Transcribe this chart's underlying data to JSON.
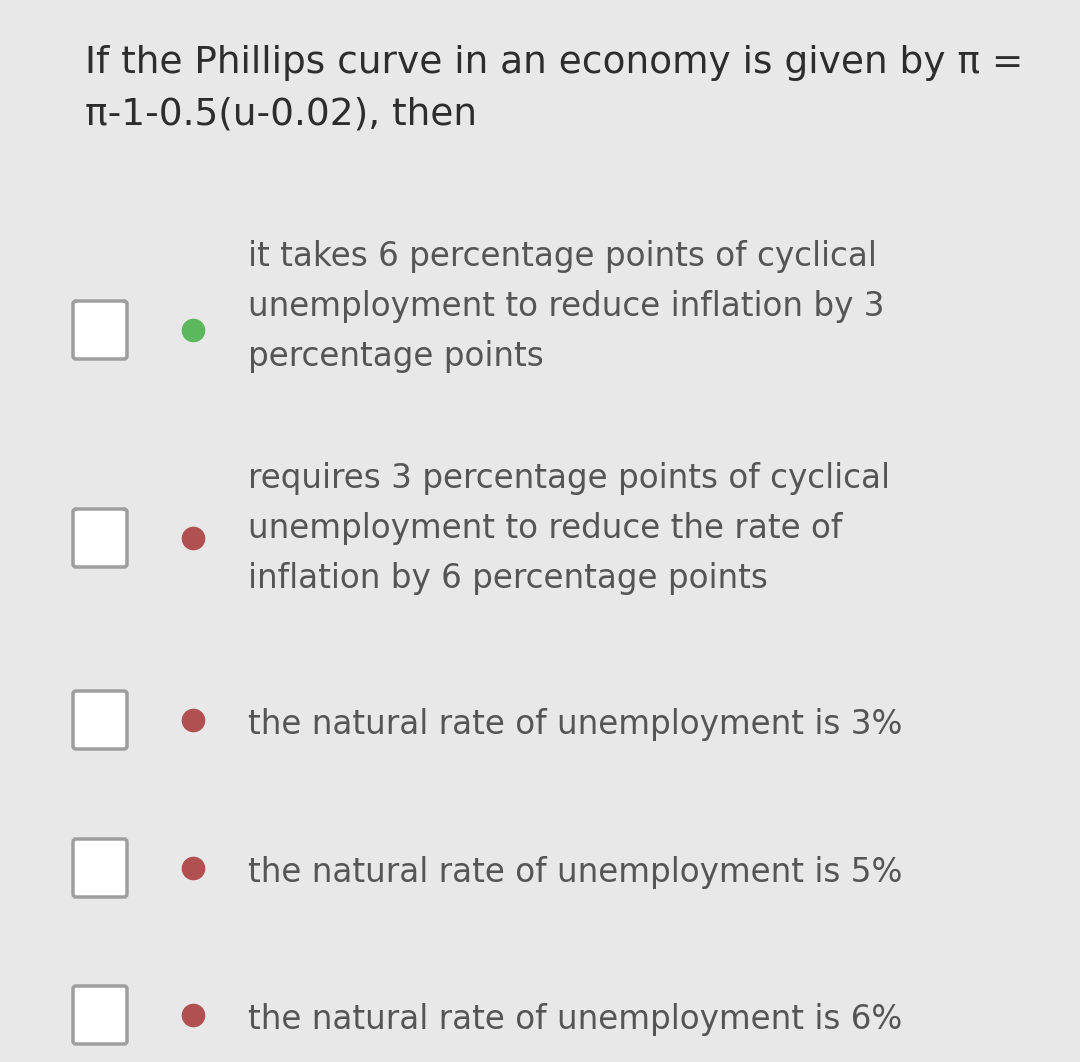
{
  "background_color": "#e8e8e8",
  "content_bg": "#ffffff",
  "question": "If the Phillips curve in an economy is given by π =\nπ-1-0.5(u-0.02), then",
  "question_fontsize": 27,
  "question_color": "#2d2d2d",
  "options": [
    {
      "text": "it takes 6 percentage points of cyclical\nunemployment to reduce inflation by 3\npercentage points",
      "dot_color": "#5cb85c",
      "lines": 3
    },
    {
      "text": "requires 3 percentage points of cyclical\nunemployment to reduce the rate of\ninflation by 6 percentage points",
      "dot_color": "#b05050",
      "lines": 3
    },
    {
      "text": "the natural rate of unemployment is 3%",
      "dot_color": "#b05050",
      "lines": 1
    },
    {
      "text": "the natural rate of unemployment is 5%",
      "dot_color": "#b05050",
      "lines": 1
    },
    {
      "text": "the natural rate of unemployment is 6%",
      "dot_color": "#b05050",
      "lines": 1
    }
  ],
  "checkbox_color": "#9e9e9e",
  "text_color": "#555555",
  "option_fontsize": 23.5
}
